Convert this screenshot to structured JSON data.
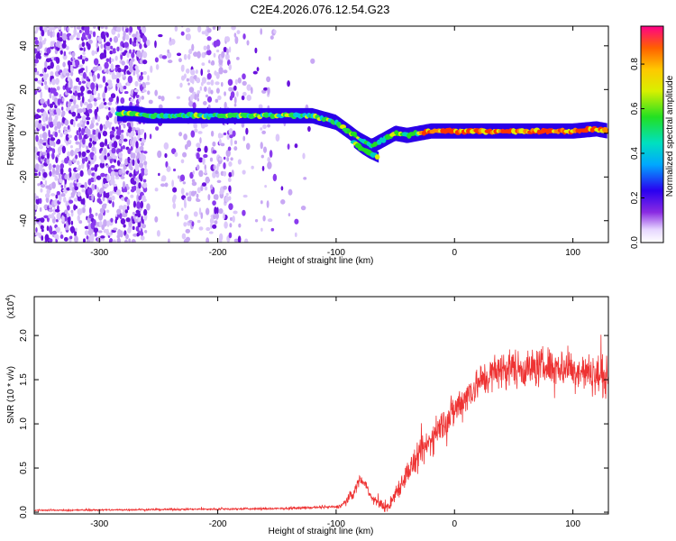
{
  "title": "C2E4.2026.076.12.54.G23",
  "chart_data": [
    {
      "type": "heatmap",
      "name": "spectrogram",
      "xlabel": "Height of straight line (km)",
      "ylabel": "Frequency (Hz)",
      "xlim": [
        -355,
        130
      ],
      "ylim": [
        -50,
        49
      ],
      "xticks": [
        -300,
        -200,
        -100,
        0,
        100
      ],
      "yticks": [
        -40,
        -20,
        0,
        20,
        40
      ],
      "colorbar": {
        "label": "Normalized spectral amplitude",
        "range": [
          0,
          0.97
        ],
        "ticks": [
          0.0,
          0.2,
          0.4,
          0.6,
          0.8
        ]
      },
      "ridge": {
        "x": [
          -285,
          -270,
          -260,
          -240,
          -220,
          -200,
          -180,
          -160,
          -140,
          -120,
          -100,
          -90,
          -80,
          -70,
          -60,
          -50,
          -40,
          -30,
          -20,
          0,
          20,
          40,
          60,
          80,
          100,
          120,
          130
        ],
        "y": [
          9,
          9,
          8,
          8,
          8,
          8,
          8,
          8,
          8,
          8,
          5,
          1,
          -3,
          -6,
          -3,
          0,
          -1,
          0,
          1,
          1,
          1,
          1,
          1,
          1,
          1,
          2,
          1
        ]
      },
      "branch": {
        "x": [
          -85,
          -78,
          -72,
          -68,
          -64
        ],
        "y": [
          -4,
          -7,
          -9,
          -10,
          -11
        ]
      },
      "noise_regions": [
        {
          "x": [
            -355,
            -262
          ],
          "density": "high"
        },
        {
          "x": [
            -262,
            -230
          ],
          "density": "low"
        },
        {
          "x": [
            -230,
            -185
          ],
          "density": "medium"
        },
        {
          "x": [
            -185,
            -148
          ],
          "density": "low"
        },
        {
          "x": [
            -148,
            -120
          ],
          "density": "very-low"
        }
      ]
    },
    {
      "type": "line",
      "name": "snr",
      "xlabel": "Height of straight line (km)",
      "ylabel": "SNR (10 * v/v)",
      "scale_label": "(x10",
      "scale_exp": "4",
      "scale_close": ")",
      "xlim": [
        -355,
        130
      ],
      "ylim": [
        -0.02,
        2.44
      ],
      "xticks": [
        -300,
        -200,
        -100,
        0,
        100
      ],
      "yticks": [
        0.0,
        0.5,
        1.0,
        1.5,
        2.0
      ],
      "color": "#ee3333",
      "envelope": {
        "x": [
          -355,
          -250,
          -150,
          -100,
          -95,
          -85,
          -80,
          -75,
          -70,
          -60,
          -55,
          -50,
          -45,
          -40,
          -30,
          -20,
          -10,
          0,
          10,
          20,
          30,
          40,
          50,
          60,
          80,
          100,
          110,
          120,
          130
        ],
        "y": [
          0.02,
          0.03,
          0.04,
          0.06,
          0.08,
          0.22,
          0.38,
          0.32,
          0.16,
          0.07,
          0.06,
          0.22,
          0.32,
          0.45,
          0.62,
          0.82,
          1.0,
          1.15,
          1.32,
          1.46,
          1.55,
          1.62,
          1.64,
          1.62,
          1.66,
          1.62,
          1.58,
          1.55,
          1.52
        ]
      },
      "noise_amplitude": {
        "x": [
          -355,
          -100,
          -85,
          -70,
          -50,
          -30,
          0,
          20,
          40,
          130
        ],
        "y": [
          0.012,
          0.02,
          0.1,
          0.05,
          0.15,
          0.25,
          0.3,
          0.3,
          0.32,
          0.32
        ]
      }
    }
  ]
}
